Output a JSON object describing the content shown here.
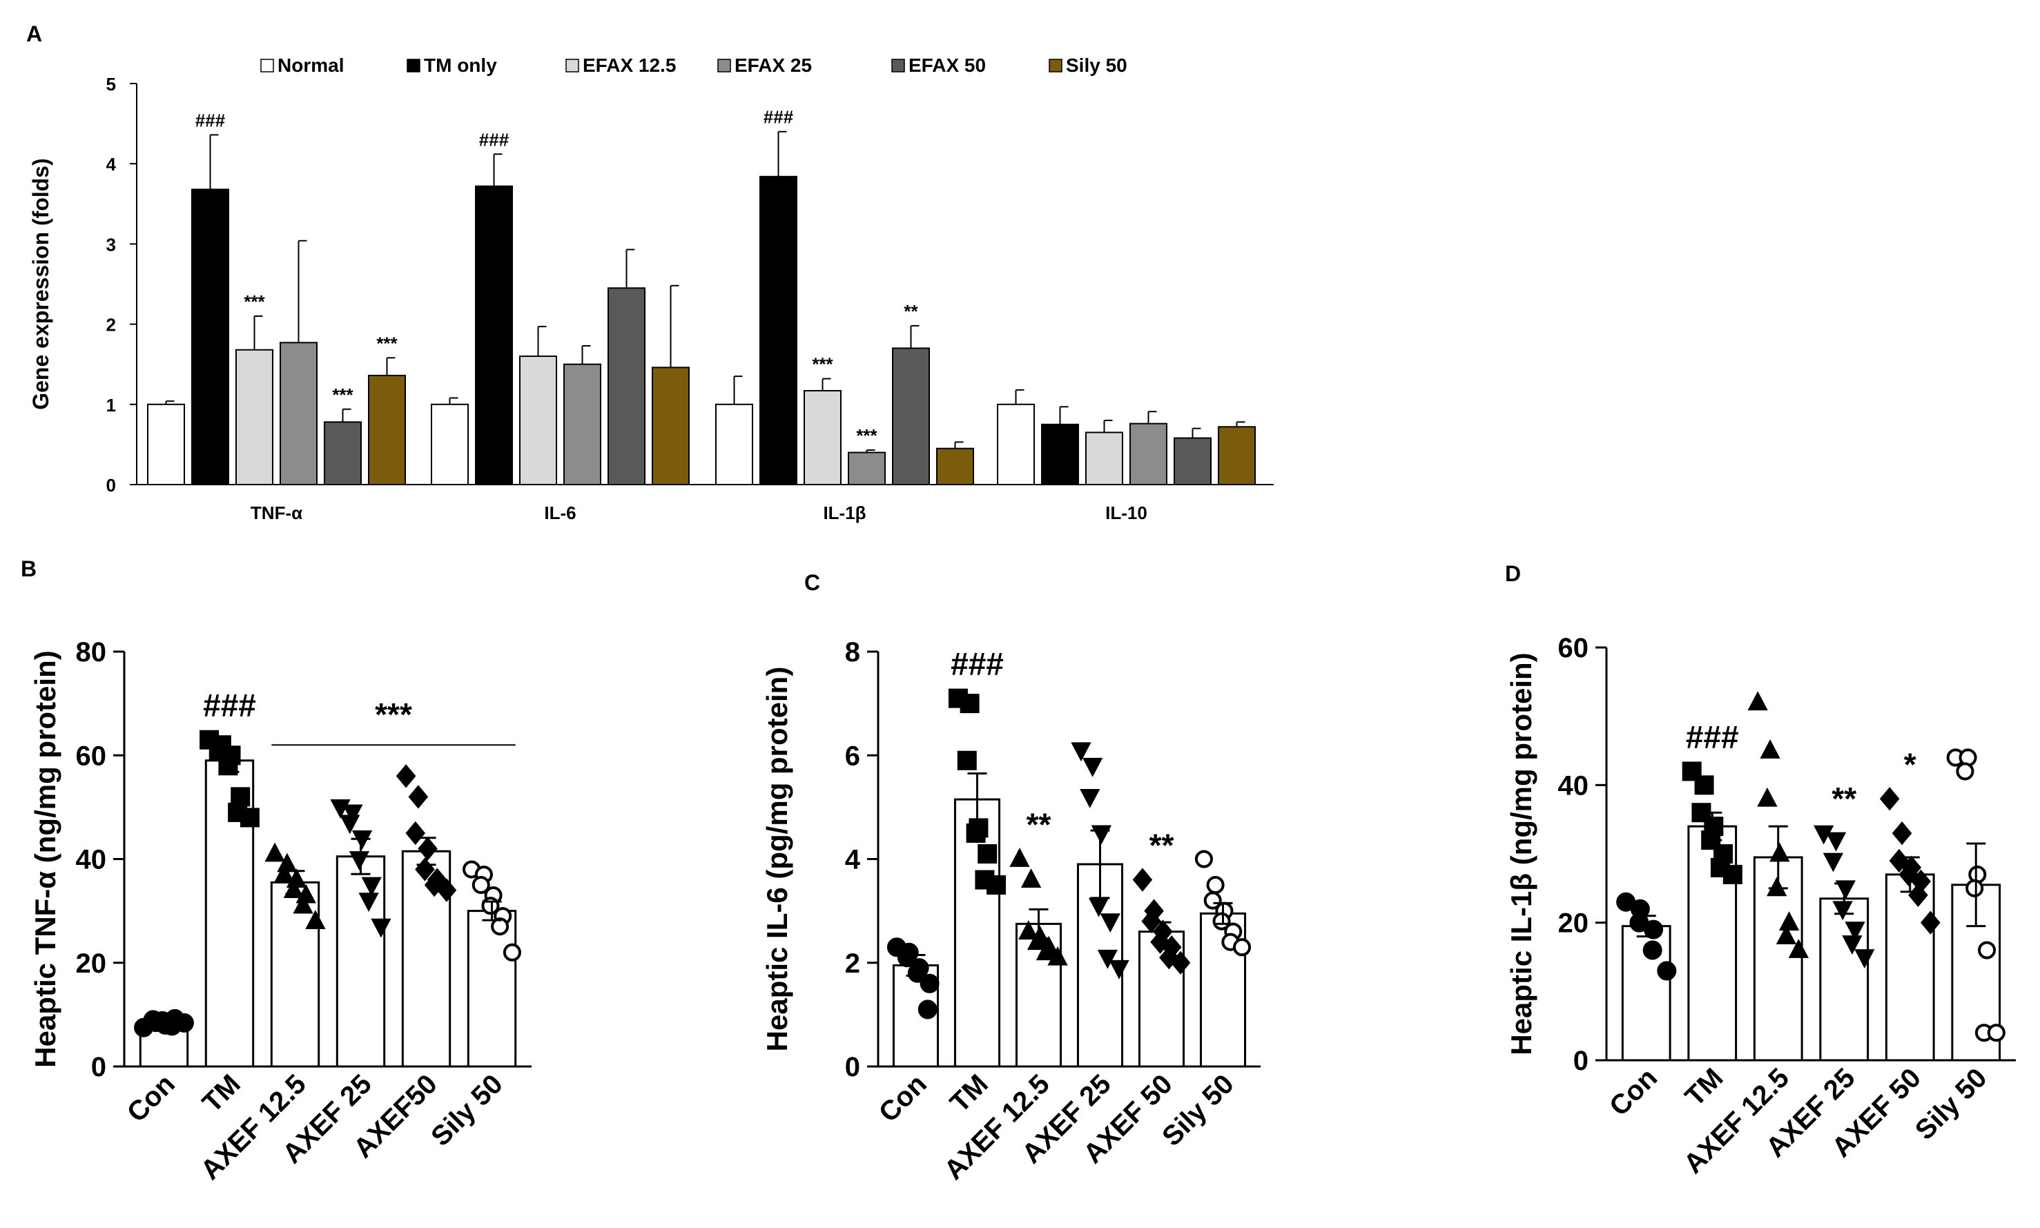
{
  "panel_labels": {
    "A": "A",
    "B": "B",
    "C": "C",
    "D": "D"
  },
  "colors": {
    "Normal": "#ffffff",
    "TM only": "#000000",
    "EFAX 12.5": "#d9d9d9",
    "EFAX 25": "#8c8c8c",
    "EFAX 50": "#595959",
    "Sily 50": "#7a5c0c"
  },
  "chart_data": [
    {
      "id": "A",
      "type": "bar",
      "title": "",
      "ylabel": "Gene expression (folds)",
      "xlabel": "",
      "ylim": [
        0,
        5
      ],
      "yticks": [
        "0",
        "1",
        "2",
        "3",
        "4",
        "5"
      ],
      "grid": false,
      "legend_position": "top",
      "categories": [
        "TNF-α",
        "IL-6",
        "IL-1β",
        "IL-10"
      ],
      "series": [
        {
          "name": "Normal",
          "values": [
            1.0,
            1.0,
            1.0,
            1.0
          ],
          "errors": [
            0.04,
            0.08,
            0.35,
            0.18
          ],
          "marks": [
            "",
            "",
            "",
            ""
          ]
        },
        {
          "name": "TM only",
          "values": [
            3.68,
            3.72,
            3.84,
            0.75
          ],
          "errors": [
            0.68,
            0.4,
            0.56,
            0.22
          ],
          "marks": [
            "###",
            "###",
            "###",
            ""
          ]
        },
        {
          "name": "EFAX 12.5",
          "values": [
            1.68,
            1.6,
            1.17,
            0.65
          ],
          "errors": [
            0.42,
            0.37,
            0.15,
            0.15
          ],
          "marks": [
            "***",
            "",
            "***",
            ""
          ]
        },
        {
          "name": "EFAX 25",
          "values": [
            1.77,
            1.5,
            0.4,
            0.76
          ],
          "errors": [
            1.27,
            0.23,
            0.03,
            0.15
          ],
          "marks": [
            "",
            "",
            "***",
            ""
          ]
        },
        {
          "name": "EFAX 50",
          "values": [
            0.78,
            2.45,
            1.7,
            0.58
          ],
          "errors": [
            0.16,
            0.48,
            0.28,
            0.12
          ],
          "marks": [
            "***",
            "",
            "**",
            ""
          ]
        },
        {
          "name": "Sily 50",
          "values": [
            1.36,
            1.46,
            0.45,
            0.72
          ],
          "errors": [
            0.22,
            1.02,
            0.08,
            0.06
          ],
          "marks": [
            "***",
            "",
            "",
            ""
          ]
        }
      ]
    },
    {
      "id": "B",
      "type": "bar",
      "title": "",
      "ylabel": "Heaptic TNF-α (ng/mg protein)",
      "xlabel": "",
      "ylim": [
        0,
        80
      ],
      "yticks": [
        "0",
        "20",
        "40",
        "60",
        "80"
      ],
      "categories": [
        "Con",
        "TM",
        "AXEF 12.5",
        "AXEF 25",
        "AXEF50",
        "Sily 50"
      ],
      "values": [
        8.5,
        59,
        35.5,
        40.5,
        41.5,
        30
      ],
      "errors": [
        0.5,
        2.2,
        2.2,
        3.4,
        2.6,
        1.8
      ],
      "markers": [
        "circle",
        "square",
        "triangle",
        "triangle-down",
        "diamond",
        "circle-open"
      ],
      "points": [
        [
          7.5,
          8.5,
          9.0,
          8.0,
          8.8,
          9.2,
          7.8,
          8.4
        ],
        [
          63,
          62,
          61,
          60,
          58,
          52,
          49,
          48
        ],
        [
          41,
          39,
          37,
          36,
          34,
          33,
          31,
          28
        ],
        [
          50,
          49,
          47,
          44,
          40,
          35,
          32,
          27
        ],
        [
          56,
          52,
          45,
          42,
          38,
          36,
          35,
          34
        ],
        [
          38,
          37,
          35,
          33,
          31,
          29,
          27,
          22
        ]
      ],
      "marks": [
        "",
        "###",
        "",
        "",
        "",
        ""
      ],
      "bracket": {
        "label": "***",
        "from": 2,
        "to": 5,
        "y": 62
      }
    },
    {
      "id": "C",
      "type": "bar",
      "title": "",
      "ylabel": "Heaptic IL-6 (pg/mg protein)",
      "xlabel": "",
      "ylim": [
        0,
        8
      ],
      "yticks": [
        "0",
        "2",
        "4",
        "6",
        "8"
      ],
      "categories": [
        "Con",
        "TM",
        "AXEF 12.5",
        "AXEF 25",
        "AXEF 50",
        "Sily 50"
      ],
      "values": [
        1.95,
        5.15,
        2.75,
        3.9,
        2.6,
        2.95
      ],
      "errors": [
        0.2,
        0.5,
        0.28,
        0.65,
        0.18,
        0.2
      ],
      "markers": [
        "circle",
        "square",
        "triangle",
        "triangle-down",
        "diamond",
        "circle-open"
      ],
      "points": [
        [
          2.3,
          2.2,
          2.1,
          1.9,
          1.8,
          1.6,
          1.1
        ],
        [
          7.1,
          7.0,
          5.9,
          4.6,
          4.5,
          4.1,
          3.6,
          3.5
        ],
        [
          4.0,
          3.6,
          2.6,
          2.5,
          2.4,
          2.3,
          2.2,
          2.1
        ],
        [
          6.1,
          5.8,
          5.2,
          4.5,
          3.1,
          2.8,
          2.1,
          1.9
        ],
        [
          3.6,
          3.0,
          2.8,
          2.6,
          2.4,
          2.3,
          2.1,
          2.0
        ],
        [
          4.0,
          3.5,
          3.2,
          3.0,
          2.8,
          2.6,
          2.4,
          2.3
        ]
      ],
      "marks": [
        "",
        "###",
        "**",
        "",
        "**",
        ""
      ]
    },
    {
      "id": "D",
      "type": "bar",
      "title": "",
      "ylabel": "Heaptic IL-1β (ng/mg protein)",
      "xlabel": "",
      "ylim": [
        0,
        60
      ],
      "yticks": [
        "0",
        "20",
        "40",
        "60"
      ],
      "categories": [
        "Con",
        "TM",
        "AXEF 12.5",
        "AXEF 25",
        "AXEF 50",
        "Sily 50"
      ],
      "values": [
        19.5,
        34,
        29.5,
        23.5,
        27,
        25.5
      ],
      "errors": [
        1.5,
        2.0,
        4.5,
        2.2,
        2.5,
        6.0
      ],
      "markers": [
        "circle",
        "square",
        "triangle",
        "triangle-down",
        "diamond",
        "circle-open"
      ],
      "points": [
        [
          23,
          22,
          20,
          19,
          16,
          13
        ],
        [
          42,
          40,
          36,
          34,
          32,
          30,
          28,
          27
        ],
        [
          52,
          45,
          38,
          30,
          25,
          20,
          18,
          16
        ],
        [
          33,
          32,
          29,
          25,
          22,
          19,
          17,
          15
        ],
        [
          38,
          33,
          29,
          28,
          27,
          26,
          24,
          20
        ],
        [
          44,
          44,
          42,
          27,
          25,
          16,
          4,
          4
        ]
      ],
      "marks": [
        "",
        "###",
        "",
        "**",
        "*",
        ""
      ]
    }
  ]
}
